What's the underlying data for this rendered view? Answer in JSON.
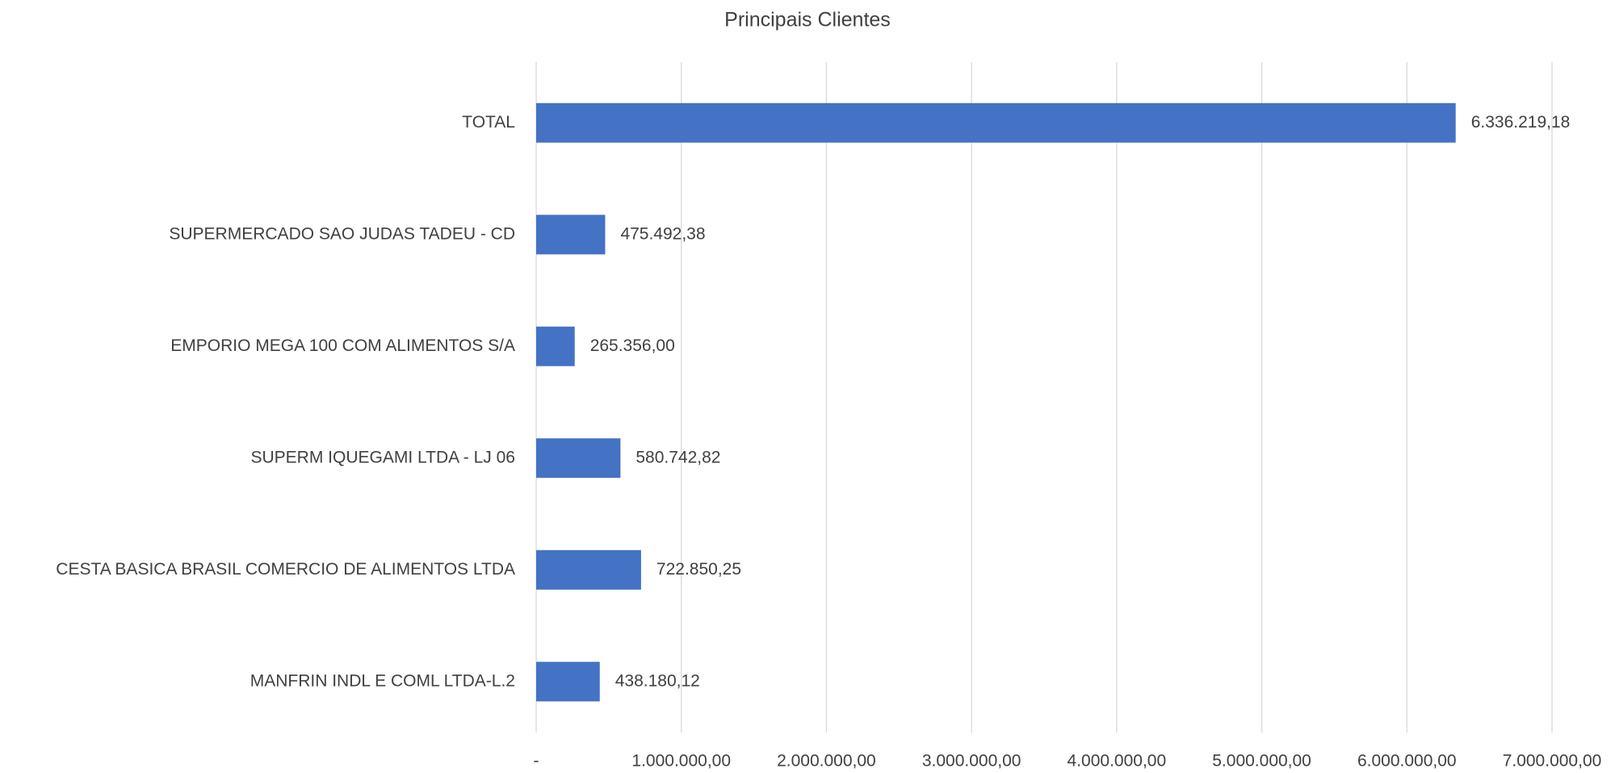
{
  "chart_data": {
    "type": "hbar",
    "title": "Principais Clientes",
    "categories": [
      "TOTAL",
      "SUPERMERCADO SAO JUDAS TADEU -  CD",
      "EMPORIO MEGA 100 COM ALIMENTOS S/A",
      "SUPERM IQUEGAMI LTDA - LJ 06",
      "CESTA BASICA BRASIL COMERCIO DE ALIMENTOS LTDA",
      "MANFRIN INDL E COML LTDA-L.2"
    ],
    "values": [
      6336219.18,
      475492.38,
      265356.0,
      580742.82,
      722850.25,
      438180.12
    ],
    "value_labels": [
      "6.336.219,18",
      "475.492,38",
      "265.356,00",
      "580.742,82",
      "722.850,25",
      "438.180,12"
    ],
    "color": "#4472c4",
    "xlim": [
      0,
      7000000
    ],
    "xticks": [
      {
        "value": 0,
        "label": "-"
      },
      {
        "value": 1000000,
        "label": "1.000.000,00"
      },
      {
        "value": 2000000,
        "label": "2.000.000,00"
      },
      {
        "value": 3000000,
        "label": "3.000.000,00"
      },
      {
        "value": 4000000,
        "label": "4.000.000,00"
      },
      {
        "value": 5000000,
        "label": "5.000.000,00"
      },
      {
        "value": 6000000,
        "label": "6.000.000,00"
      },
      {
        "value": 7000000,
        "label": "7.000.000,00"
      }
    ],
    "grid": true
  }
}
